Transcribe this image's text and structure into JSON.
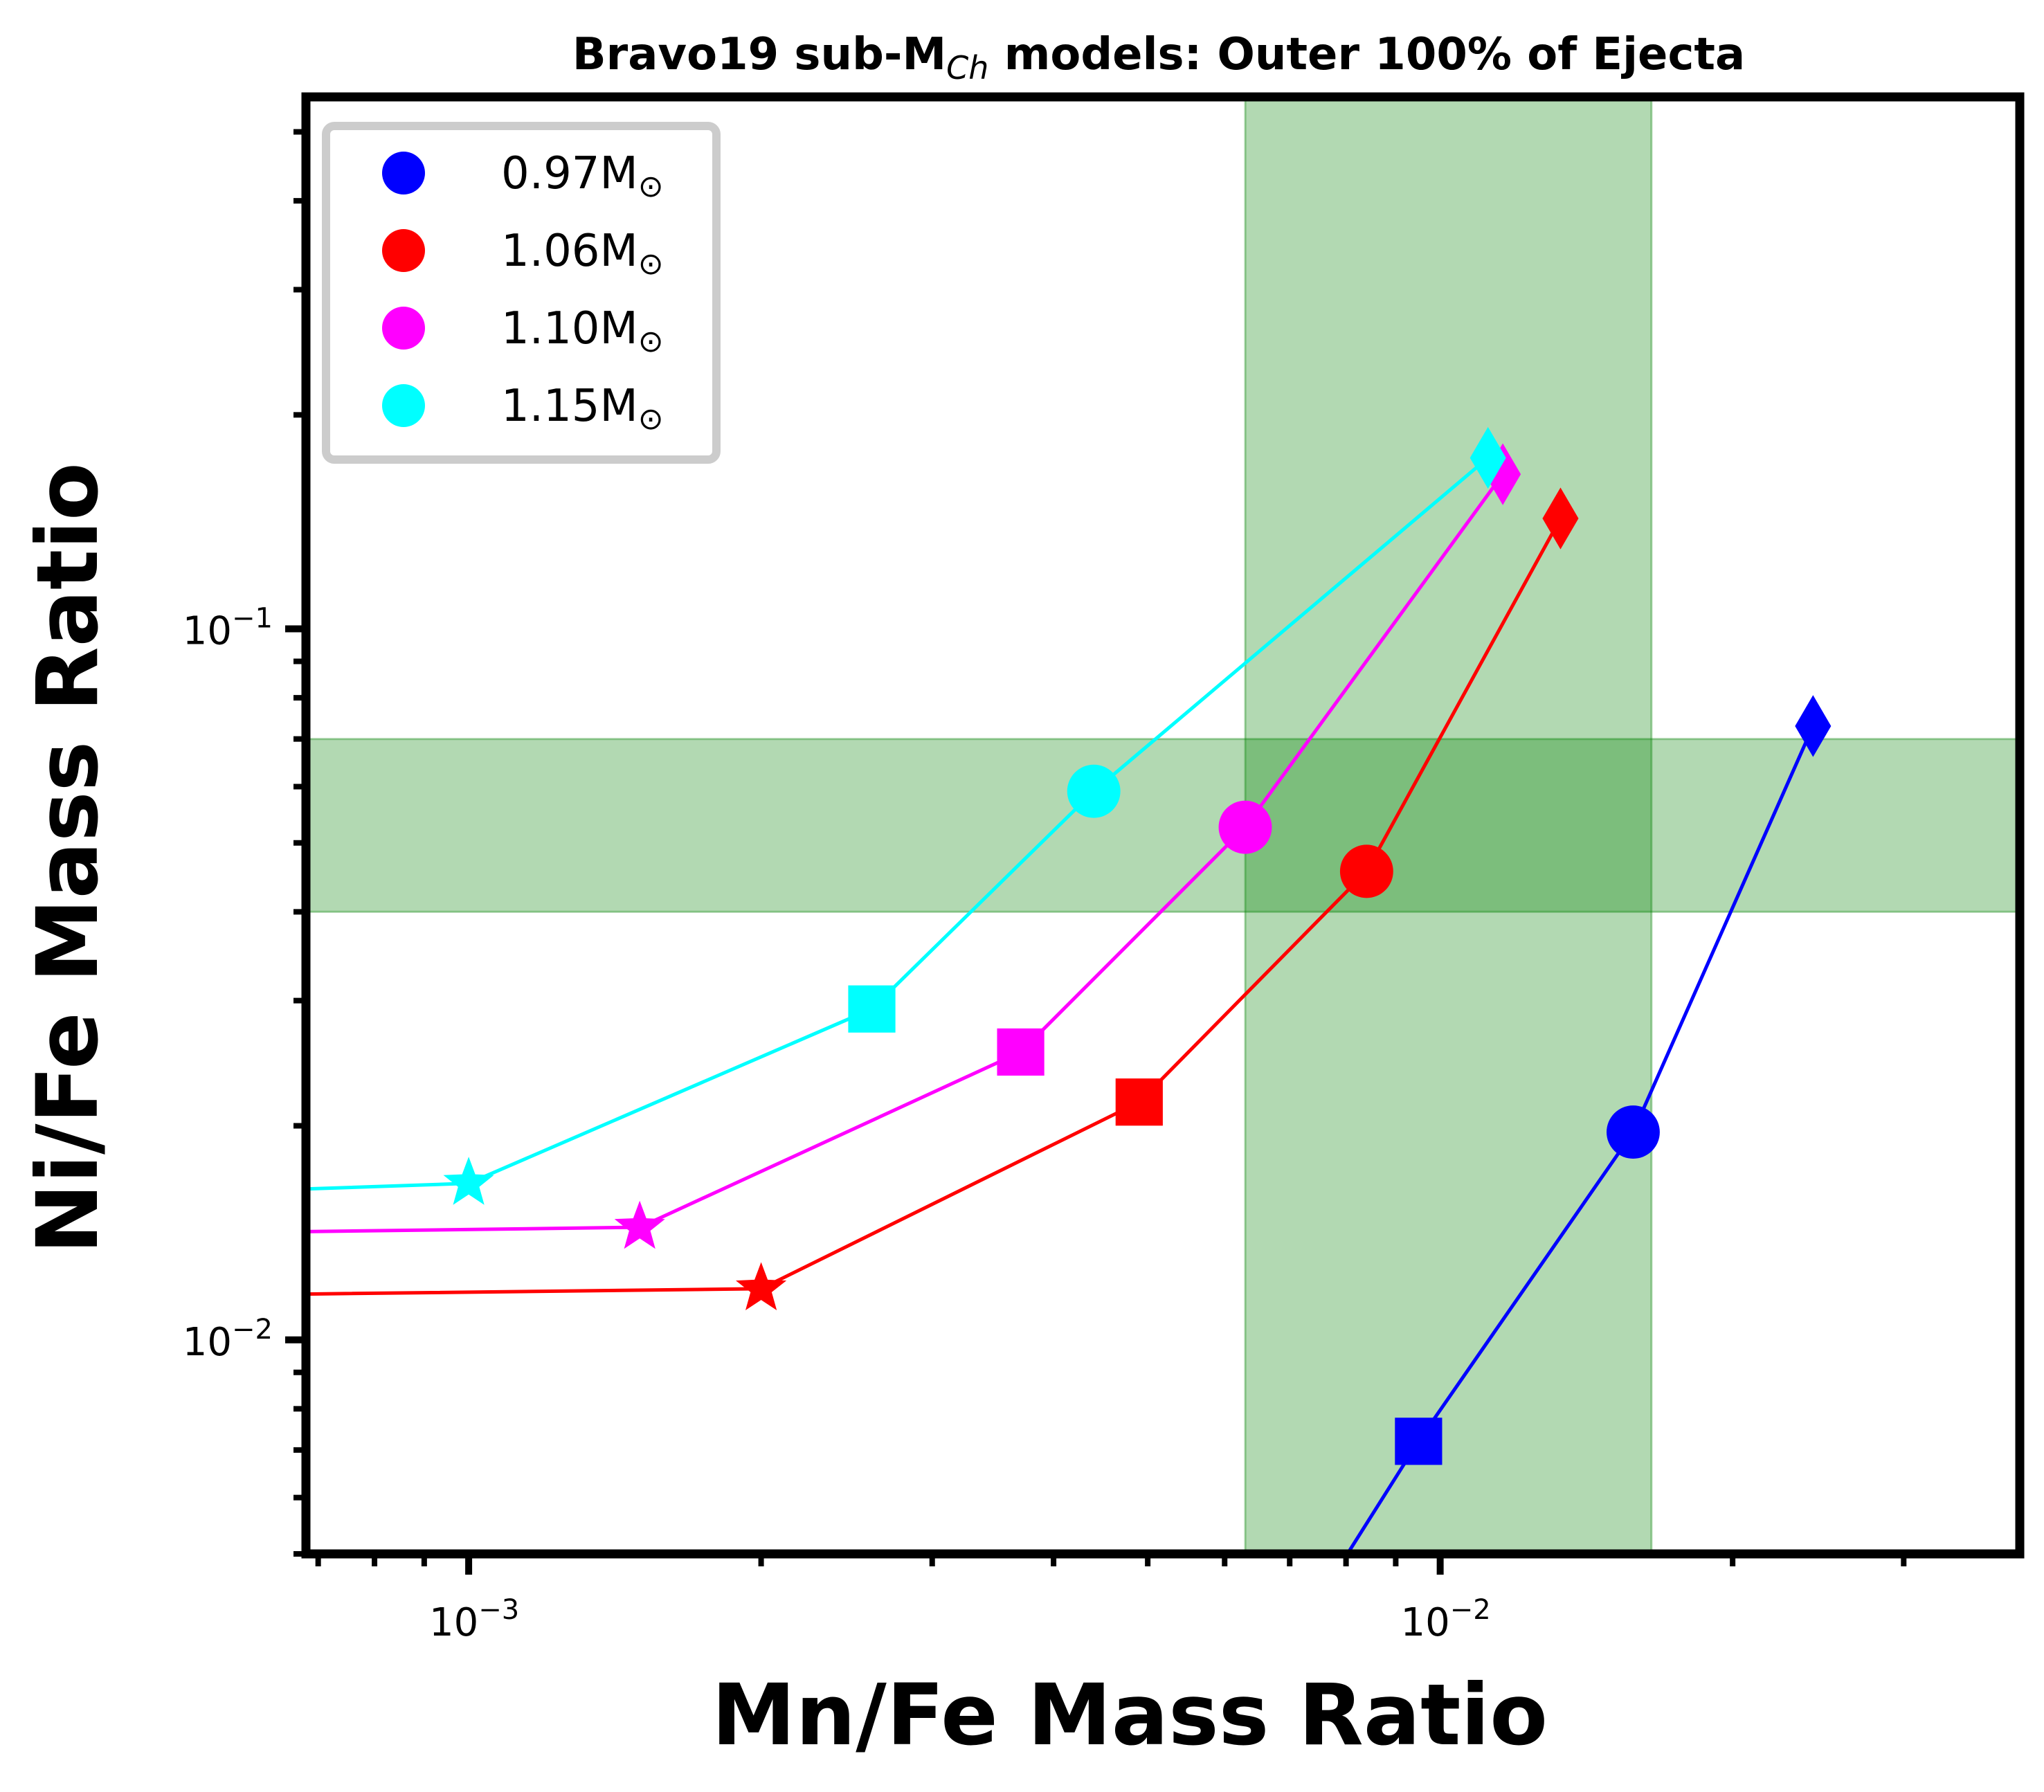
{
  "chart_data": {
    "type": "scatter",
    "title": {
      "prefix": "Bravo19 sub-M",
      "subscript": "Ch",
      "suffix": " models: Outer 100% of Ejecta"
    },
    "xlabel": "Mn/Fe Mass Ratio",
    "ylabel": "Ni/Fe Mass Ratio",
    "x_scale": "log",
    "y_scale": "log",
    "xlim": [
      0.00068,
      0.0395
    ],
    "ylim": [
      0.005,
      0.56
    ],
    "x_ticklabels": [
      {
        "value": 0.001,
        "base": "10",
        "exp": "−3"
      },
      {
        "value": 0.01,
        "base": "10",
        "exp": "−2"
      }
    ],
    "y_ticklabels": [
      {
        "value": 0.1,
        "base": "10",
        "exp": "−1"
      },
      {
        "value": 0.01,
        "base": "10",
        "exp": "−2"
      }
    ],
    "bands": [
      {
        "orientation": "vertical",
        "from": 0.0063,
        "to": 0.0165,
        "color": "#008000",
        "opacity": 0.3
      },
      {
        "orientation": "horizontal",
        "from": 0.04,
        "to": 0.07,
        "color": "#008000",
        "opacity": 0.3
      }
    ],
    "legend": {
      "position": "top-left",
      "entries": [
        {
          "label": "0.97",
          "unit": "M",
          "sun": "⊙",
          "color": "#0000ff"
        },
        {
          "label": "1.06",
          "unit": "M",
          "sun": "⊙",
          "color": "#ff0000"
        },
        {
          "label": "1.10",
          "unit": "M",
          "sun": "⊙",
          "color": "#ff00ff"
        },
        {
          "label": "1.15",
          "unit": "M",
          "sun": "⊙",
          "color": "#00ffff"
        }
      ]
    },
    "marker_sequence": [
      "star",
      "square",
      "circle",
      "diamond"
    ],
    "series": [
      {
        "color": "#0000ff",
        "line_from": [
          0.0078,
          0.0047
        ],
        "points": [
          {
            "x": 0.0095,
            "y": 0.0072,
            "marker": "square"
          },
          {
            "x": 0.0158,
            "y": 0.0196,
            "marker": "circle"
          },
          {
            "x": 0.0242,
            "y": 0.073,
            "marker": "diamond"
          }
        ]
      },
      {
        "color": "#ff0000",
        "line_from": [
          0.00068,
          0.0116
        ],
        "points": [
          {
            "x": 0.002,
            "y": 0.0118,
            "marker": "star"
          },
          {
            "x": 0.0049,
            "y": 0.0216,
            "marker": "square"
          },
          {
            "x": 0.0084,
            "y": 0.0456,
            "marker": "circle"
          },
          {
            "x": 0.0133,
            "y": 0.143,
            "marker": "diamond"
          }
        ]
      },
      {
        "color": "#ff00ff",
        "line_from": [
          0.00068,
          0.0142
        ],
        "points": [
          {
            "x": 0.0015,
            "y": 0.0144,
            "marker": "star"
          },
          {
            "x": 0.0037,
            "y": 0.0254,
            "marker": "square"
          },
          {
            "x": 0.0063,
            "y": 0.0526,
            "marker": "circle"
          },
          {
            "x": 0.0116,
            "y": 0.165,
            "marker": "diamond"
          }
        ]
      },
      {
        "color": "#00ffff",
        "line_from": [
          0.00068,
          0.0163
        ],
        "points": [
          {
            "x": 0.001,
            "y": 0.0166,
            "marker": "star"
          },
          {
            "x": 0.0026,
            "y": 0.0292,
            "marker": "square"
          },
          {
            "x": 0.0044,
            "y": 0.0591,
            "marker": "circle"
          },
          {
            "x": 0.0112,
            "y": 0.174,
            "marker": "diamond"
          }
        ]
      }
    ]
  }
}
